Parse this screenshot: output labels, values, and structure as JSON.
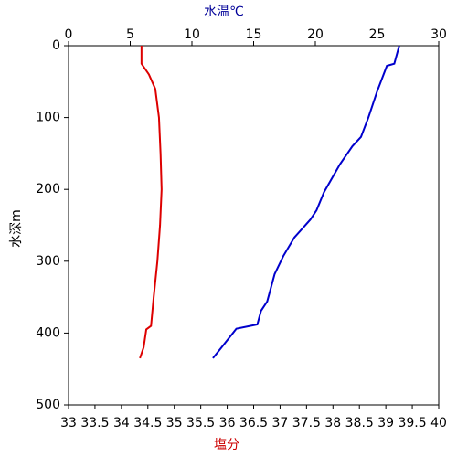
{
  "chart_data": {
    "type": "line",
    "xlabel": "塩分",
    "x2label": "水温℃",
    "ylabel": "水深m",
    "xlabel_color": "#cc0000",
    "x2label_color": "#000099",
    "xlim": [
      33,
      40
    ],
    "xticks": [
      33,
      33.5,
      34,
      34.5,
      35,
      35.5,
      36,
      36.5,
      37,
      37.5,
      38,
      38.5,
      39,
      39.5,
      40
    ],
    "x2lim": [
      0,
      30
    ],
    "x2ticks": [
      0,
      5,
      10,
      15,
      20,
      25,
      30
    ],
    "ylim": [
      0,
      500
    ],
    "yticks": [
      0,
      100,
      200,
      300,
      400,
      500
    ],
    "y_inverted": true,
    "series": [
      {
        "color": "#0000cc",
        "axis": "x2",
        "x": [
          26.8,
          26.4,
          25.8,
          25.0,
          24.3,
          23.7,
          23.0,
          22.0,
          20.7,
          20.1,
          19.6,
          18.3,
          17.4,
          16.7,
          16.1,
          15.6,
          15.3,
          13.6,
          13.0,
          12.4,
          11.7
        ],
        "values": [
          0,
          25,
          28,
          64,
          100,
          127,
          140,
          165,
          204,
          229,
          242,
          267,
          293,
          318,
          356,
          369,
          388,
          394,
          407,
          420,
          435
        ]
      },
      {
        "color": "#dd0000",
        "axis": "x",
        "x": [
          34.38,
          34.38,
          34.52,
          34.64,
          34.71,
          34.74,
          34.76,
          34.73,
          34.68,
          34.61,
          34.56,
          34.47,
          34.42,
          34.35
        ],
        "values": [
          0,
          25,
          40,
          60,
          100,
          150,
          200,
          250,
          300,
          350,
          390,
          395,
          420,
          435
        ]
      }
    ]
  }
}
